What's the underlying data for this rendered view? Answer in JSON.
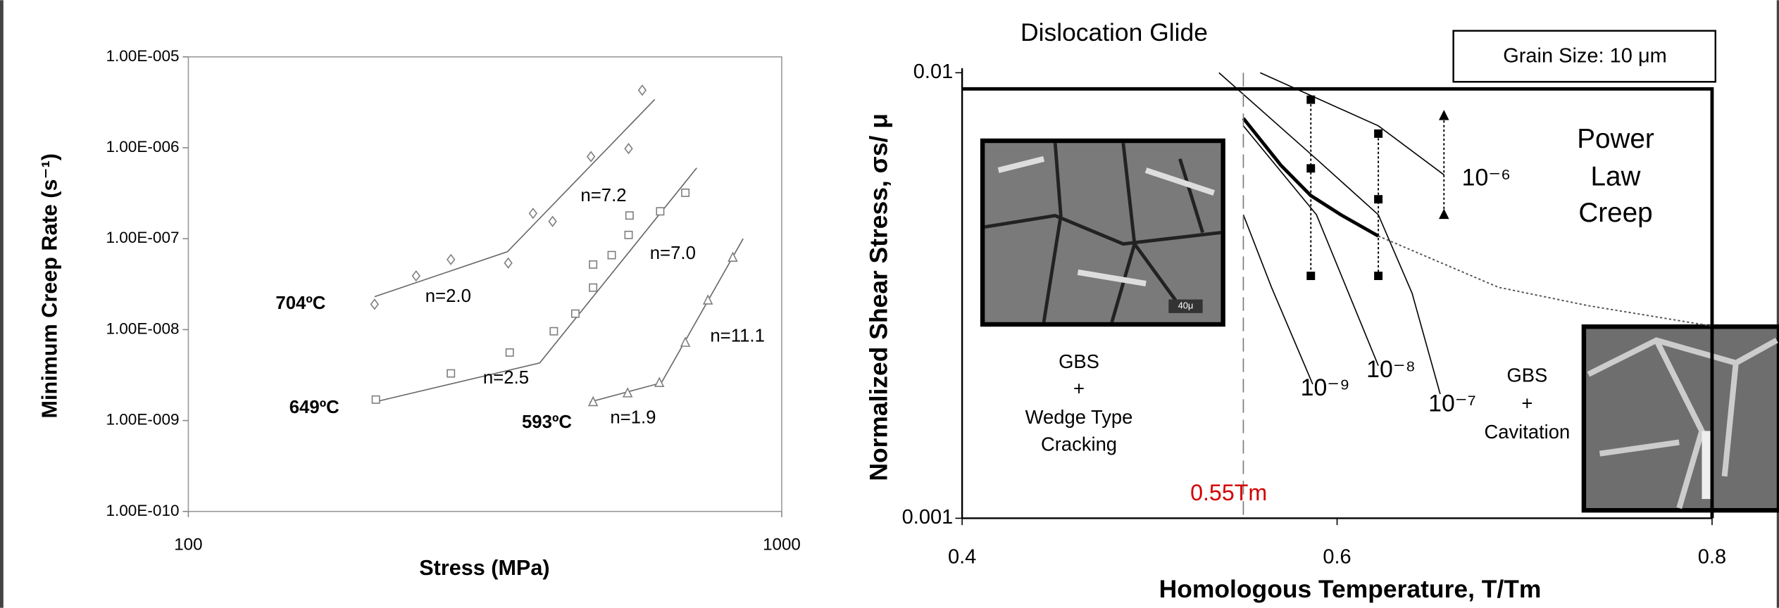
{
  "chart_data": [
    {
      "type": "scatter",
      "y_label": "Minimum Creep Rate (s⁻¹)",
      "x_label": "Stress (MPa)",
      "x_log": true,
      "y_log": true,
      "grid": false,
      "xlim": [
        100,
        1000
      ],
      "xticks": [
        100,
        1000
      ],
      "ylim": [
        1e-10,
        1e-05
      ],
      "yticks": [
        {
          "value": 1e-10,
          "label": "1.00E-010"
        },
        {
          "value": 1e-09,
          "label": "1.00E-009"
        },
        {
          "value": 1e-08,
          "label": "1.00E-008"
        },
        {
          "value": 1e-07,
          "label": "1.00E-007"
        },
        {
          "value": 1e-06,
          "label": "1.00E-006"
        },
        {
          "value": 1e-05,
          "label": "1.00E-005"
        }
      ],
      "series": [
        {
          "name": "704ºC",
          "marker": "diamond",
          "color": "#7f7f7f",
          "x": [
            206,
            242,
            277,
            346,
            381,
            411,
            477,
            552,
            582
          ],
          "values": [
            1.9e-08,
            3.9e-08,
            5.9e-08,
            5.4e-08,
            1.9e-07,
            1.55e-07,
            8e-07,
            9.8e-07,
            4.3e-06
          ],
          "fit_x": [
            206,
            345,
            611
          ],
          "fit_values": [
            2.3e-08,
            7.2e-08,
            3.4e-06
          ]
        },
        {
          "name": "649ºC",
          "marker": "square",
          "color": "#7f7f7f",
          "x": [
            207,
            277,
            348,
            413,
            449,
            481,
            481,
            517,
            552,
            554,
            624,
            688
          ],
          "values": [
            1.7e-09,
            3.3e-09,
            5.6e-09,
            9.6e-09,
            1.5e-08,
            2.9e-08,
            5.2e-08,
            6.6e-08,
            1.1e-07,
            1.8e-07,
            2e-07,
            3.2e-07
          ],
          "fit_x": [
            206,
            391,
            719
          ],
          "fit_values": [
            1.6e-09,
            4.3e-09,
            6e-07
          ]
        },
        {
          "name": "593ºC",
          "marker": "triangle",
          "color": "#7f7f7f",
          "x": [
            481,
            550,
            622,
            688,
            751,
            827
          ],
          "values": [
            1.6e-09,
            2e-09,
            2.6e-09,
            7.2e-09,
            2.1e-08,
            6.2e-08
          ],
          "fit_x": [
            475,
            627,
            861
          ],
          "fit_values": [
            1.6e-09,
            2.6e-09,
            1e-07
          ]
        }
      ],
      "annotations": [
        "n=2.0",
        "n=7.2",
        "n=2.5",
        "n=7.0",
        "n=1.9",
        "n=11.1"
      ]
    },
    {
      "type": "line",
      "title": "Dislocation Glide",
      "x_label": "Homologous Temperature, T/Tm",
      "y_label": "Normalized Shear Stress, σs/ μ",
      "y_log": true,
      "xlim": [
        0.4,
        0.8
      ],
      "xticks": [
        0.4,
        0.6,
        0.8
      ],
      "ylim": [
        0.001,
        0.01
      ],
      "yticks": [
        0.001,
        0.01
      ],
      "series": [
        {
          "name": "10⁻⁹",
          "style": "thin",
          "color": "#000000",
          "x": [
            0.55,
            0.565,
            0.587
          ],
          "values": [
            0.0048,
            0.0033,
            0.002
          ]
        },
        {
          "name": "10⁻⁸",
          "style": "thin",
          "color": "#000000",
          "x": [
            0.55,
            0.589,
            0.622
          ],
          "values": [
            0.0076,
            0.0048,
            0.0022
          ]
        },
        {
          "name": "10⁻⁷",
          "style": "thin",
          "color": "#000000",
          "x": [
            0.537,
            0.589,
            0.622,
            0.64,
            0.655
          ],
          "values": [
            0.01,
            0.0064,
            0.0048,
            0.0032,
            0.0019
          ]
        },
        {
          "name": "10⁻⁶",
          "style": "thin",
          "color": "#000000",
          "x": [
            0.559,
            0.622,
            0.657
          ],
          "values": [
            0.01,
            0.0076,
            0.0059
          ]
        },
        {
          "style": "thick",
          "color": "#000000",
          "x": [
            0.55,
            0.57,
            0.586,
            0.602,
            0.622
          ],
          "values": [
            0.0079,
            0.0062,
            0.0053,
            0.0048,
            0.0043
          ]
        },
        {
          "style": "dotted",
          "color": "#555555",
          "x": [
            0.622,
            0.686,
            0.734,
            0.8
          ],
          "values": [
            0.0043,
            0.0033,
            0.003,
            0.0027
          ]
        },
        {
          "style": "thick",
          "color": "#000000",
          "x": [
            0.4,
            0.8,
            0.8
          ],
          "values": [
            0.0092,
            0.0092,
            0.001
          ]
        },
        {
          "style": "dashed",
          "color": "#777777",
          "x": [
            0.55,
            0.55
          ],
          "values": [
            0.01,
            0.001
          ]
        },
        {
          "style": "dotted",
          "marker": "square",
          "color": "#000000",
          "x": [
            0.586,
            0.586,
            0.586
          ],
          "values": [
            0.0087,
            0.0061,
            0.0035
          ]
        },
        {
          "style": "dotted",
          "marker": "square",
          "color": "#000000",
          "x": [
            0.622,
            0.622,
            0.622
          ],
          "values": [
            0.0073,
            0.0052,
            0.0035
          ]
        },
        {
          "style": "dotted",
          "marker": "triangle",
          "color": "#000000",
          "x": [
            0.657,
            0.657
          ],
          "values": [
            0.008,
            0.0048
          ]
        }
      ],
      "annotations": [
        {
          "lines": [
            "Power",
            "Law",
            "Creep"
          ]
        },
        {
          "lines": [
            "GBS",
            "+",
            "Wedge Type",
            "Cracking"
          ]
        },
        {
          "lines": [
            "GBS",
            "+",
            "Cavitation"
          ]
        },
        {
          "lines": [
            "0.55Tm"
          ],
          "color": "#d40000"
        }
      ],
      "legend_box": "Grain Size: 10 μm",
      "micrograph_label": "40μ"
    }
  ]
}
